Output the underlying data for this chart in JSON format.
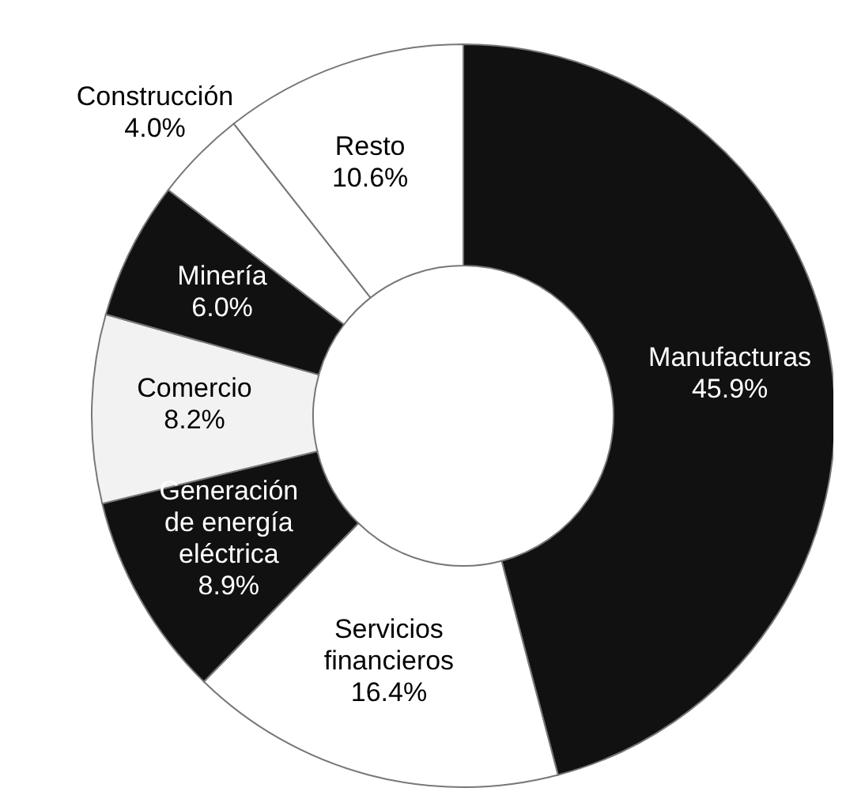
{
  "chart_data": {
    "type": "donut",
    "categories": [
      "Manufacturas",
      "Servicios financieros",
      "Generación de energía eléctrica",
      "Comercio",
      "Minería",
      "Construcción",
      "Resto"
    ],
    "values": [
      45.9,
      16.4,
      8.9,
      8.2,
      6.0,
      4.0,
      10.6
    ],
    "colors": [
      "#111111",
      "#ffffff",
      "#111111",
      "#f2f2f2",
      "#111111",
      "#ffffff",
      "#ffffff"
    ],
    "value_labels": [
      "45.9%",
      "16.4%",
      "8.9%",
      "8.2%",
      "6.0%",
      "4.0%",
      "10.6%"
    ],
    "legend": false
  }
}
